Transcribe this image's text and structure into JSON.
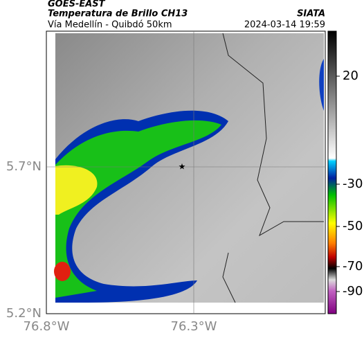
{
  "header": {
    "satellite": "GOES-EAST",
    "product": "Temperatura de Brillo CH13",
    "route": "Vía Medellín - Quibdó 50km",
    "source": "SIATA",
    "timestamp": "2024-03-14 19:59"
  },
  "map": {
    "lat_labels": [
      "5.7°N",
      "5.2°N"
    ],
    "lon_labels": [
      "76.8°W",
      "76.3°W"
    ]
  },
  "colorbar": {
    "ticks": [
      20,
      -30,
      -50,
      -70,
      -90
    ]
  }
}
